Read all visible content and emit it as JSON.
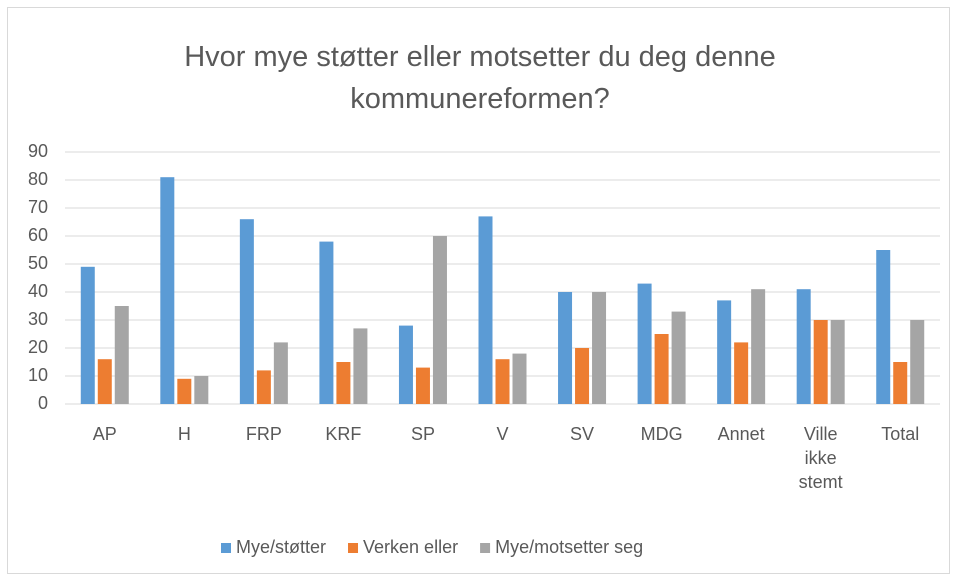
{
  "chart_data": {
    "type": "bar",
    "title": "Hvor mye støtter eller motsetter du deg denne kommunereformen?",
    "categories": [
      "AP",
      "H",
      "FRP",
      "KRF",
      "SP",
      "V",
      "SV",
      "MDG",
      "Annet",
      "Ville ikke stemt",
      "Total"
    ],
    "series": [
      {
        "name": "Mye/støtter",
        "color": "#5b9bd5",
        "values": [
          49,
          81,
          66,
          58,
          28,
          67,
          40,
          43,
          37,
          41,
          55
        ]
      },
      {
        "name": "Verken eller",
        "color": "#ed7d31",
        "values": [
          16,
          9,
          12,
          15,
          13,
          16,
          20,
          25,
          22,
          30,
          15
        ]
      },
      {
        "name": "Mye/motsetter seg",
        "color": "#a5a5a5",
        "values": [
          35,
          10,
          22,
          27,
          60,
          18,
          40,
          33,
          41,
          30,
          30
        ]
      }
    ],
    "ylim": [
      0,
      90
    ],
    "yticks": [
      0,
      10,
      20,
      30,
      40,
      50,
      60,
      70,
      80,
      90
    ],
    "grid": true,
    "legend": "bottom"
  }
}
